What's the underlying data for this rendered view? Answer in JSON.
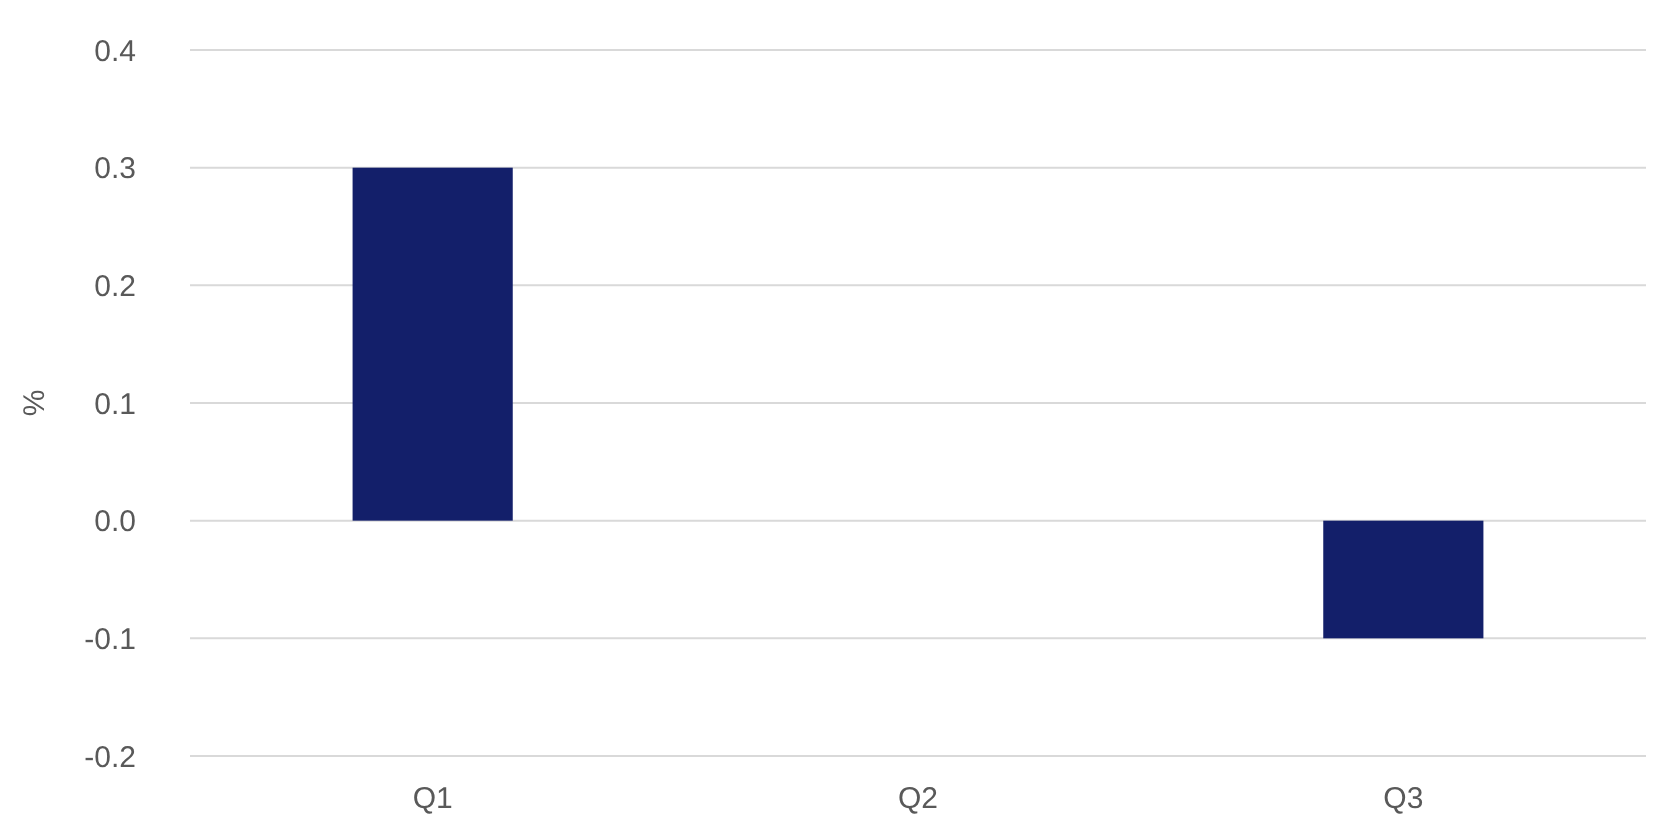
{
  "chart_data": {
    "type": "bar",
    "ylabel": "%",
    "categories": [
      "Q1",
      "Q2",
      "Q3"
    ],
    "values": [
      0.3,
      0,
      -0.1
    ],
    "color": "#131f6a",
    "ylim": [
      -0.2,
      0.4
    ],
    "yticks": [
      {
        "value": -0.2,
        "label": "-0.2"
      },
      {
        "value": -0.1,
        "label": "-0.1"
      },
      {
        "value": 0,
        "label": "0.0"
      },
      {
        "value": 0.1,
        "label": "0.1"
      },
      {
        "value": 0.2,
        "label": "0.2"
      },
      {
        "value": 0.3,
        "label": "0.3"
      },
      {
        "value": 0.4,
        "label": "0.4"
      }
    ],
    "grid": "y"
  }
}
